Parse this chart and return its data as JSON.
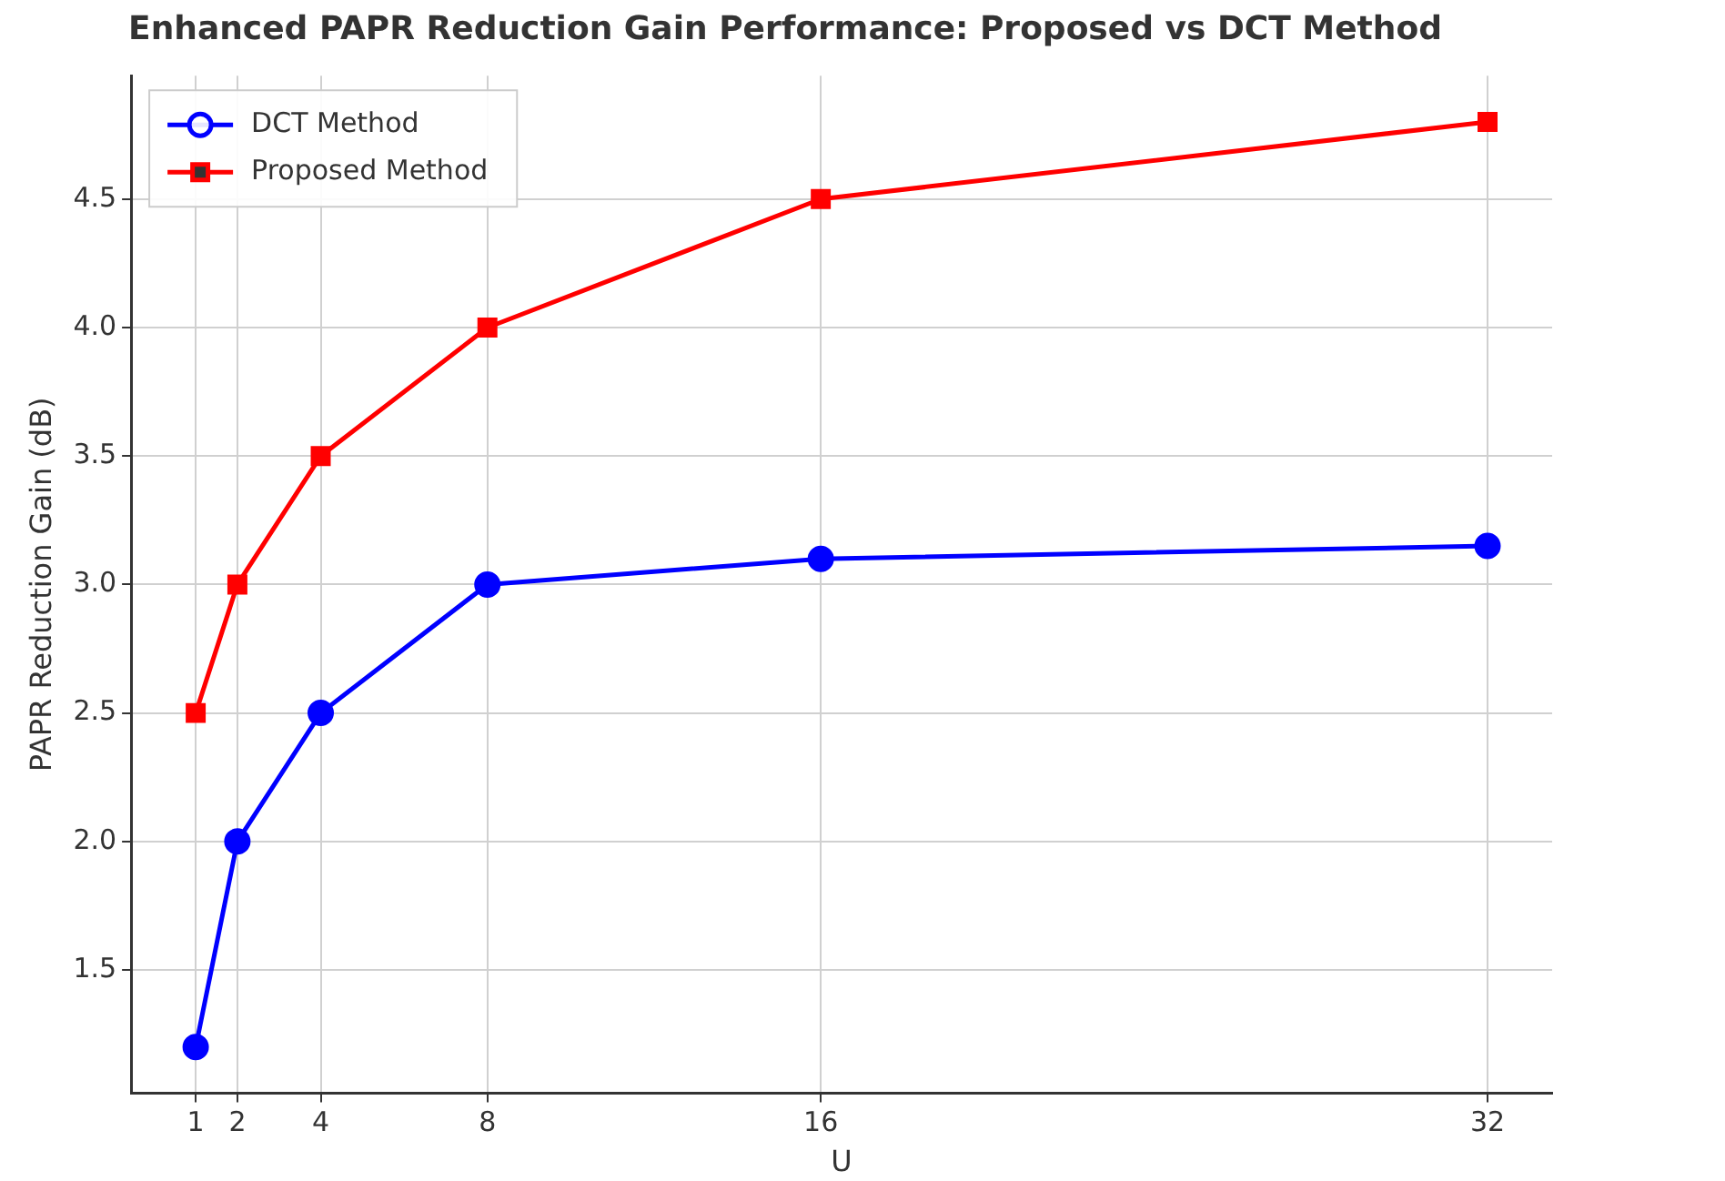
{
  "chart_data": {
    "type": "line",
    "title": "Enhanced PAPR Reduction Gain Performance: Proposed vs DCT Method",
    "xlabel": "U",
    "ylabel": "PAPR Reduction Gain (dB)",
    "x": [
      1,
      2,
      4,
      8,
      16,
      32
    ],
    "series": [
      {
        "name": "DCT Method",
        "color": "#0000ff",
        "marker": "circle",
        "values": [
          1.2,
          2.0,
          2.5,
          3.0,
          3.1,
          3.15
        ]
      },
      {
        "name": "Proposed Method",
        "color": "#ff0000",
        "marker": "square",
        "values": [
          2.5,
          3.0,
          3.5,
          4.0,
          4.5,
          4.8
        ]
      }
    ],
    "xlim": [
      -0.55,
      33.55
    ],
    "xticks": [
      1,
      2,
      4,
      8,
      16,
      32
    ],
    "ylim": [
      1.02,
      4.98
    ],
    "yticks": [
      1.5,
      {
        "value": 2,
        "label": "2.0"
      },
      2.5,
      {
        "value": 3,
        "label": "3.0"
      },
      3.5,
      {
        "value": 4,
        "label": "4.0"
      },
      4.5
    ],
    "grid": true,
    "legend": "top left",
    "line_style": "solid"
  }
}
